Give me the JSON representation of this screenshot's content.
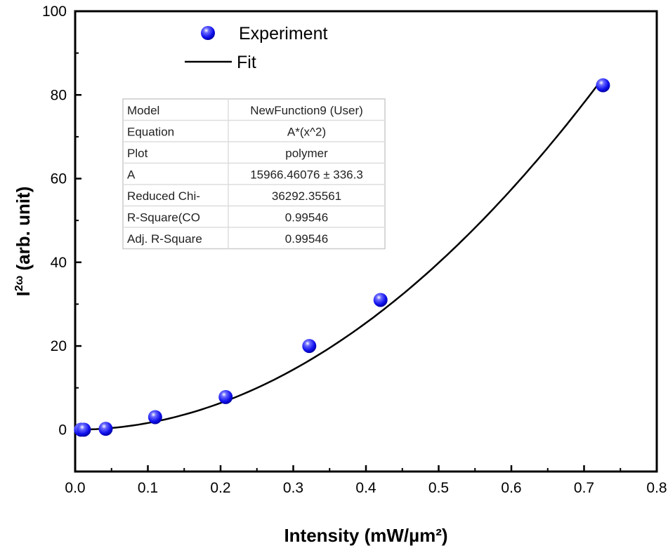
{
  "chart_data": {
    "type": "scatter",
    "xlabel": "Intensity (mW/µm²)",
    "ylabel_main": "I",
    "ylabel_sup": "2ω",
    "ylabel_rest": " (arb. unit)",
    "xlim": [
      0.0,
      0.8
    ],
    "ylim": [
      -10,
      100
    ],
    "xticks": [
      "0.0",
      "0.1",
      "0.2",
      "0.3",
      "0.4",
      "0.5",
      "0.6",
      "0.7",
      "0.8"
    ],
    "yticks": [
      "0",
      "20",
      "40",
      "60",
      "80",
      "100"
    ],
    "grid": false,
    "legend_placement": "top-left",
    "series": [
      {
        "name": "Experiment",
        "kind": "scatter",
        "color": "#1a1aff",
        "x": [
          0.008,
          0.012,
          0.042,
          0.11,
          0.207,
          0.322,
          0.42,
          0.726
        ],
        "y": [
          0.0,
          0.0,
          0.2,
          3.0,
          7.8,
          20.0,
          31.0,
          82.3
        ]
      },
      {
        "name": "Fit",
        "kind": "line",
        "color": "#000000",
        "equation": "A*(x^2)",
        "x_range": [
          0.0,
          0.72
        ]
      }
    ],
    "fit_table": [
      [
        "Model",
        "NewFunction9 (User)"
      ],
      [
        "Equation",
        "A*(x^2)"
      ],
      [
        "Plot",
        "polymer"
      ],
      [
        "A",
        "15966.46076 ± 336.3"
      ],
      [
        "Reduced Chi-",
        "36292.35561"
      ],
      [
        "R-Square(CO",
        "0.99546"
      ],
      [
        "Adj. R-Square",
        "0.99546"
      ]
    ]
  }
}
